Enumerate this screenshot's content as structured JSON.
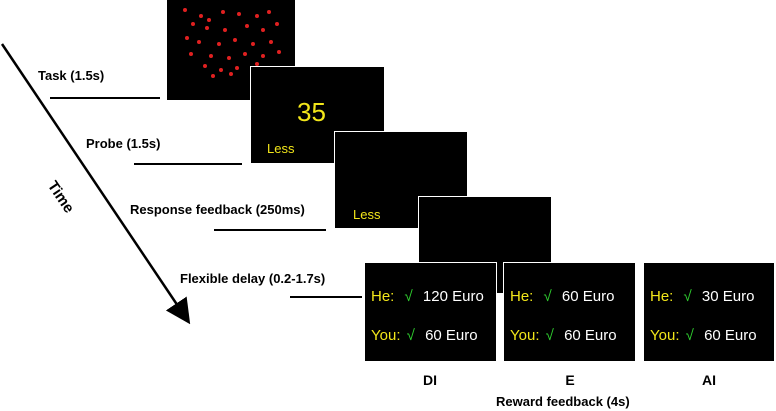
{
  "stages": {
    "task": "Task (1.5s)",
    "probe": "Probe (1.5s)",
    "response_feedback": "Response feedback (250ms)",
    "delay": "Flexible delay (0.2-1.7s)"
  },
  "time_label": "Time",
  "probe_screen": {
    "number": "35",
    "word": "Less"
  },
  "response_screen": {
    "word": "Less"
  },
  "reward_title": "Reward feedback (4s)",
  "check_mark": "√",
  "reward_panels": [
    {
      "condition": "DI",
      "he_label": "He:",
      "he_amount": "120 Euro",
      "you_label": "You:",
      "you_amount": "60 Euro"
    },
    {
      "condition": "E",
      "he_label": "He:",
      "he_amount": "60 Euro",
      "you_label": "You:",
      "you_amount": "60 Euro"
    },
    {
      "condition": "AI",
      "he_label": "He:",
      "he_amount": "30 Euro",
      "you_label": "You:",
      "you_amount": "60 Euro"
    }
  ],
  "colors": {
    "text_yellow": "#f2e61a",
    "check_green": "#2fcf2f",
    "dot_red": "#e02020",
    "screen": "#000000"
  }
}
